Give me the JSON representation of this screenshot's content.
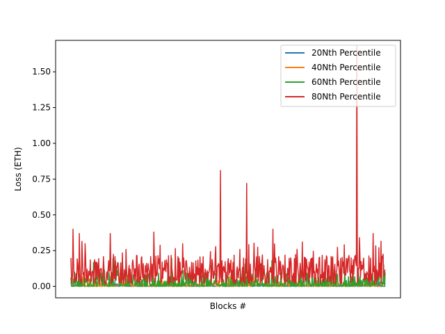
{
  "chart_data": {
    "type": "line",
    "title": "",
    "xlabel": "Blocks #",
    "ylabel": "Loss (ETH)",
    "ylim": [
      -0.08,
      1.72
    ],
    "yticks": [
      "0.00",
      "0.25",
      "0.50",
      "0.75",
      "1.00",
      "1.25",
      "1.50"
    ],
    "yticks_values": [
      0,
      0.25,
      0.5,
      0.75,
      1.0,
      1.25,
      1.5
    ],
    "x_ticks_visible": false,
    "grid": false,
    "legend_position": "top-right",
    "num_points": 600,
    "series": [
      {
        "name": "20Nth Percentile",
        "color": "#1f77b4",
        "typical_range": [
          0,
          0.02
        ],
        "spikes": []
      },
      {
        "name": "40Nth Percentile",
        "color": "#ff7f0e",
        "typical_range": [
          0,
          0.04
        ],
        "spikes": []
      },
      {
        "name": "60Nth Percentile",
        "color": "#2ca02c",
        "typical_range": [
          0,
          0.1
        ],
        "spikes": []
      },
      {
        "name": "80Nth Percentile",
        "color": "#d62728",
        "typical_range": [
          0.02,
          0.22
        ],
        "spikes": [
          {
            "index": 4,
            "value": 0.4
          },
          {
            "index": 16,
            "value": 0.37
          },
          {
            "index": 75,
            "value": 0.37
          },
          {
            "index": 158,
            "value": 0.38
          },
          {
            "index": 285,
            "value": 0.81
          },
          {
            "index": 335,
            "value": 0.72
          },
          {
            "index": 385,
            "value": 0.4
          },
          {
            "index": 545,
            "value": 1.68
          },
          {
            "index": 550,
            "value": 0.34
          },
          {
            "index": 576,
            "value": 0.37
          }
        ]
      }
    ]
  }
}
